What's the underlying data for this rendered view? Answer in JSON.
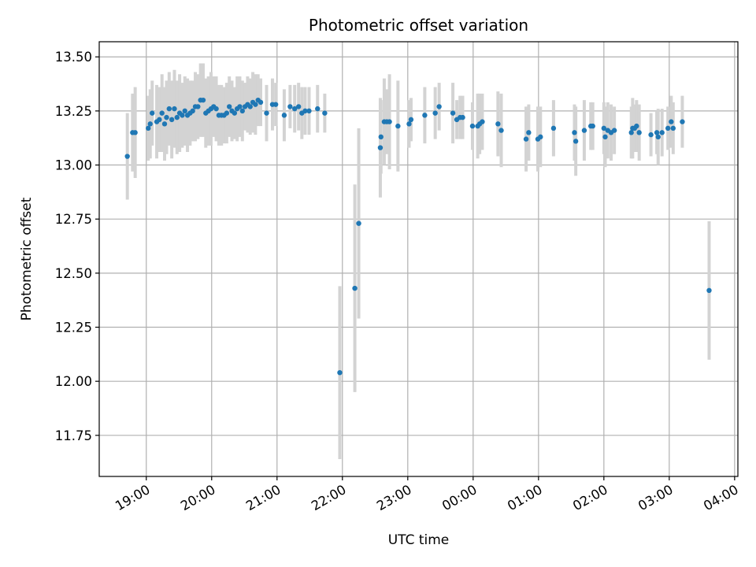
{
  "chart_data": {
    "type": "scatter",
    "title": "Photometric offset variation",
    "xlabel": "UTC time",
    "ylabel": "Photometric offset",
    "x_tick_labels": [
      "19:00",
      "20:00",
      "21:00",
      "22:00",
      "23:00",
      "00:00",
      "01:00",
      "02:00",
      "03:00",
      "04:00"
    ],
    "y_tick_labels": [
      "11.75",
      "12.00",
      "12.25",
      "12.50",
      "12.75",
      "13.00",
      "13.25",
      "13.50"
    ],
    "x_tick_values": [
      19,
      20,
      21,
      22,
      23,
      24,
      25,
      26,
      27,
      28
    ],
    "y_tick_values": [
      11.75,
      12.0,
      12.25,
      12.5,
      12.75,
      13.0,
      13.25,
      13.5
    ],
    "xlim": [
      18.28,
      28.05
    ],
    "ylim": [
      11.56,
      13.57
    ],
    "grid": true,
    "x_axis_unit": "hours UTC since 00:00 of the first night (values above 24 are past midnight)",
    "point_color": "#1f77b4",
    "errorbar_color": "#d3d3d3",
    "series": [
      {
        "x": [
          18.71,
          18.79,
          18.83,
          19.03,
          19.06,
          19.09,
          19.16,
          19.2,
          19.24,
          19.28,
          19.31,
          19.35,
          19.39,
          19.43,
          19.47,
          19.51,
          19.55,
          19.59,
          19.63,
          19.67,
          19.71,
          19.75,
          19.79,
          19.83,
          19.87,
          19.91,
          19.95,
          19.99,
          20.03,
          20.07,
          20.11,
          20.15,
          20.19,
          20.23,
          20.27,
          20.31,
          20.35,
          20.39,
          20.43,
          20.47,
          20.51,
          20.55,
          20.59,
          20.63,
          20.67,
          20.71,
          20.75,
          20.84,
          20.93,
          20.98,
          21.11,
          21.2,
          21.27,
          21.33,
          21.38,
          21.43,
          21.49,
          21.62,
          21.73,
          21.96,
          22.19,
          22.25,
          22.58,
          22.59,
          22.64,
          22.68,
          22.72,
          22.85,
          23.02,
          23.05,
          23.26,
          23.42,
          23.48,
          23.69,
          23.75,
          23.8,
          23.84,
          23.99,
          24.07,
          24.1,
          24.14,
          24.38,
          24.43,
          24.81,
          24.85,
          24.99,
          25.03,
          25.23,
          25.55,
          25.57,
          25.7,
          25.8,
          25.83,
          26.0,
          26.02,
          26.06,
          26.11,
          26.16,
          26.42,
          26.44,
          26.47,
          26.5,
          26.54,
          26.72,
          26.81,
          26.83,
          26.89,
          26.98,
          27.03,
          27.06,
          27.2,
          27.61
        ],
        "y": [
          13.04,
          13.15,
          13.15,
          13.17,
          13.19,
          13.24,
          13.2,
          13.21,
          13.24,
          13.19,
          13.22,
          13.26,
          13.21,
          13.26,
          13.22,
          13.24,
          13.23,
          13.25,
          13.23,
          13.24,
          13.25,
          13.27,
          13.27,
          13.3,
          13.3,
          13.24,
          13.25,
          13.26,
          13.27,
          13.26,
          13.23,
          13.23,
          13.23,
          13.24,
          13.27,
          13.25,
          13.24,
          13.26,
          13.27,
          13.25,
          13.27,
          13.28,
          13.27,
          13.29,
          13.28,
          13.3,
          13.29,
          13.24,
          13.28,
          13.28,
          13.23,
          13.27,
          13.26,
          13.27,
          13.24,
          13.25,
          13.25,
          13.26,
          13.24,
          12.04,
          12.43,
          12.73,
          13.08,
          13.13,
          13.2,
          13.2,
          13.2,
          13.18,
          13.19,
          13.21,
          13.23,
          13.24,
          13.27,
          13.24,
          13.21,
          13.22,
          13.22,
          13.18,
          13.18,
          13.19,
          13.2,
          13.19,
          13.16,
          13.12,
          13.15,
          13.12,
          13.13,
          13.17,
          13.15,
          13.11,
          13.16,
          13.18,
          13.18,
          13.17,
          13.13,
          13.16,
          13.15,
          13.16,
          13.15,
          13.17,
          13.17,
          13.18,
          13.15,
          13.14,
          13.15,
          13.13,
          13.15,
          13.17,
          13.2,
          13.17,
          13.2,
          12.42
        ],
        "yerr": [
          0.2,
          0.18,
          0.21,
          0.15,
          0.16,
          0.15,
          0.17,
          0.15,
          0.18,
          0.17,
          0.17,
          0.17,
          0.18,
          0.18,
          0.17,
          0.18,
          0.15,
          0.16,
          0.17,
          0.15,
          0.14,
          0.16,
          0.15,
          0.17,
          0.17,
          0.16,
          0.16,
          0.17,
          0.14,
          0.15,
          0.14,
          0.14,
          0.13,
          0.14,
          0.14,
          0.14,
          0.12,
          0.15,
          0.14,
          0.14,
          0.11,
          0.13,
          0.13,
          0.14,
          0.14,
          0.12,
          0.11,
          0.13,
          0.12,
          0.1,
          0.12,
          0.1,
          0.11,
          0.11,
          0.12,
          0.11,
          0.11,
          0.11,
          0.09,
          0.4,
          0.48,
          0.44,
          0.23,
          0.17,
          0.2,
          0.15,
          0.22,
          0.21,
          0.11,
          0.1,
          0.13,
          0.12,
          0.11,
          0.14,
          0.09,
          0.1,
          0.1,
          0.11,
          0.15,
          0.14,
          0.13,
          0.15,
          0.17,
          0.15,
          0.13,
          0.15,
          0.14,
          0.13,
          0.13,
          0.16,
          0.14,
          0.11,
          0.11,
          0.12,
          0.14,
          0.13,
          0.13,
          0.11,
          0.12,
          0.14,
          0.11,
          0.12,
          0.13,
          0.1,
          0.1,
          0.13,
          0.11,
          0.1,
          0.12,
          0.12,
          0.12,
          0.32
        ]
      }
    ]
  }
}
